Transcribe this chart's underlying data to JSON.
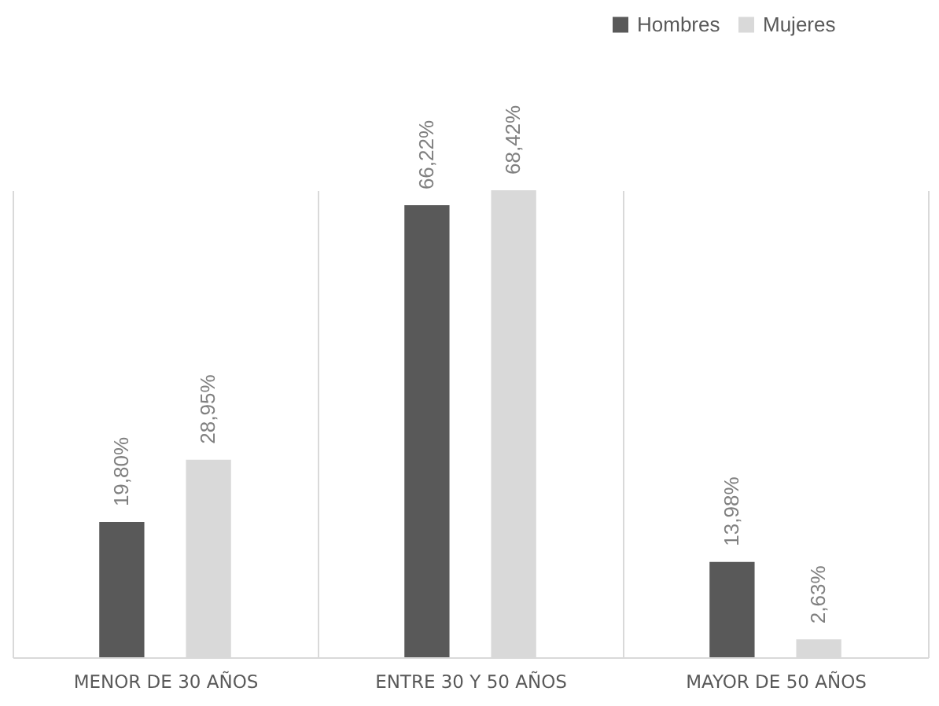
{
  "chart_data": {
    "type": "bar",
    "categories": [
      "MENOR DE 30 AÑOS",
      "ENTRE 30 Y 50 AÑOS",
      "MAYOR DE 50 AÑOS"
    ],
    "series": [
      {
        "name": "Hombres",
        "color": "#595959",
        "values": [
          19.8,
          66.22,
          13.98
        ],
        "value_labels": [
          "19,80%",
          "66,22%",
          "13,98%"
        ]
      },
      {
        "name": "Mujeres",
        "color": "#d9d9d9",
        "values": [
          28.95,
          68.42,
          2.63
        ],
        "value_labels": [
          "28,95%",
          "68,42%",
          "2,63%"
        ]
      }
    ],
    "legend": "top right",
    "grid": "x"
  }
}
